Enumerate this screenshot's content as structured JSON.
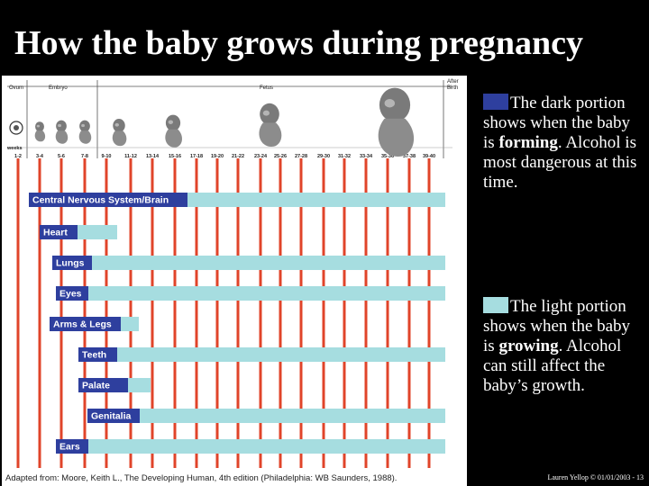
{
  "title": "How the baby grows during pregnancy",
  "colors": {
    "forming": "#2e3f9e",
    "growing": "#a6dde0",
    "week_line": "#e0442a"
  },
  "chart_data": {
    "type": "gantt-style chart",
    "stages": [
      "Ovum",
      "Embryo",
      "Fetus",
      "After Birth"
    ],
    "weeks_label": "weeks",
    "weeks": [
      "1-2",
      "3-4",
      "5-6",
      "7-8",
      "9-10",
      "11-12",
      "13-14",
      "15-16",
      "17-18",
      "19-20",
      "21-22",
      "23-24",
      "25-26",
      "27-28",
      "29-30",
      "31-32",
      "33-34",
      "35-36",
      "37-38",
      "39-40"
    ],
    "rows": [
      {
        "label": "Central Nervous System/Brain"
      },
      {
        "label": "Heart"
      },
      {
        "label": "Lungs"
      },
      {
        "label": "Eyes"
      },
      {
        "label": "Arms & Legs"
      },
      {
        "label": "Teeth"
      },
      {
        "label": "Palate"
      },
      {
        "label": "Genitalia"
      },
      {
        "label": "Ears"
      }
    ],
    "credit": "Adapted from: Moore, Keith L., The Developing Human, 4th edition (Philadelphia: WB Saunders, 1988)."
  },
  "legend": {
    "dark": {
      "pre": "The dark portion shows when the baby is ",
      "keyword": "forming",
      "post": ". Alcohol is most dangerous at this time."
    },
    "light": {
      "pre": "The light portion shows when the baby is ",
      "keyword": "growing",
      "post": ". Alcohol can still affect the baby’s growth."
    }
  },
  "footer": "Lauren Yellop © 01/01/2003 - 13"
}
